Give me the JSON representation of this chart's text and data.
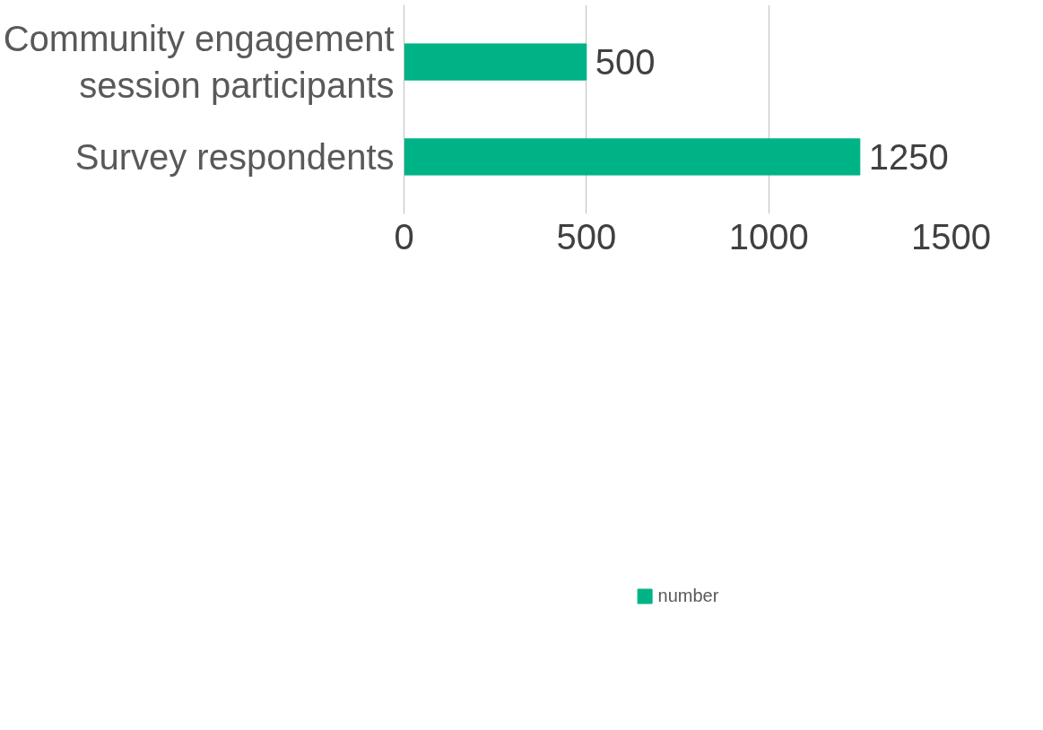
{
  "chart_data": {
    "type": "bar",
    "orientation": "horizontal",
    "categories": [
      "Community engagement\nsession participants",
      "Survey respondents"
    ],
    "series": [
      {
        "name": "number",
        "color": "#00b386",
        "values": [
          500,
          1250
        ]
      }
    ],
    "xlim": [
      0,
      1500
    ],
    "xticks": [
      0,
      500,
      1000,
      1500
    ],
    "grid": "x",
    "legend": "bottom",
    "data_labels": true
  }
}
